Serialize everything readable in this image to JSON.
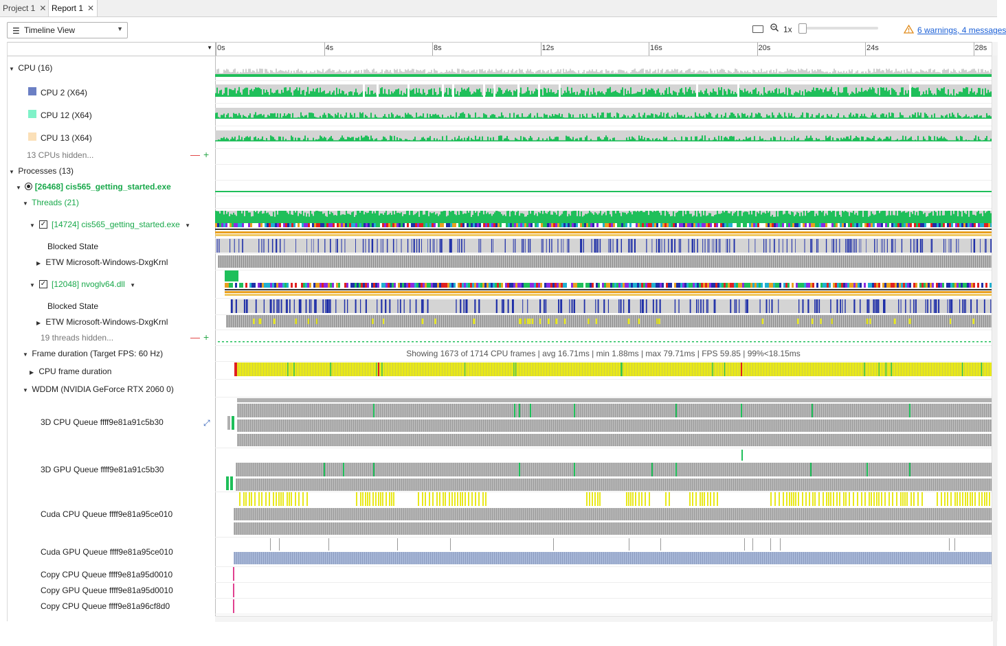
{
  "tabs": [
    {
      "label": "Project 1",
      "close": "✕"
    },
    {
      "label": "Report 1",
      "close": "✕"
    }
  ],
  "toolbar": {
    "view_label": "Timeline View",
    "zoom_label": "1x",
    "warnings_link": "6 warnings, 4 messages"
  },
  "ruler": {
    "ticks": [
      "0s",
      "4s",
      "8s",
      "12s",
      "16s",
      "20s",
      "24s",
      "28s"
    ]
  },
  "tree": {
    "cpu_group": "CPU (16)",
    "cpus": [
      {
        "label": "CPU 2 (X64)",
        "color": "#6b7fc4"
      },
      {
        "label": "CPU 12 (X64)",
        "color": "#7ff2c8"
      },
      {
        "label": "CPU 13 (X64)",
        "color": "#fbe0b8"
      }
    ],
    "cpus_hidden": "13 CPUs hidden...",
    "processes_group": "Processes (13)",
    "process_name": "[26468] cis565_getting_started.exe",
    "threads_group": "Threads (21)",
    "thread1_name": "[14724] cis565_getting_started.exe",
    "thread1_blocked": "Blocked State",
    "thread1_etw": "ETW Microsoft-Windows-DxgKrnl",
    "thread2_name": "[12048] nvoglv64.dll",
    "thread2_blocked": "Blocked State",
    "thread2_etw": "ETW Microsoft-Windows-DxgKrnl",
    "threads_hidden": "19 threads hidden...",
    "frame_duration": "Frame duration (Target FPS: 60 Hz)",
    "cpu_frame_duration": "CPU frame duration",
    "wddm": "WDDM (NVIDIA GeForce RTX 2060 0)",
    "queues": [
      "3D CPU Queue ffff9e81a91c5b30",
      "3D GPU Queue ffff9e81a91c5b30",
      "Cuda CPU Queue ffff9e81a95ce010",
      "Cuda GPU Queue ffff9e81a95ce010",
      "Copy CPU Queue ffff9e81a95d0010",
      "Copy GPU Queue ffff9e81a95d0010",
      "Copy CPU Queue ffff9e81a96cf8d0"
    ]
  },
  "frame_summary": "Showing 1673 of 1714 CPU frames | avg 16.71ms | min 1.88ms | max 79.71ms | FPS 59.85 | 99%<18.15ms",
  "colors": {
    "activity_green": "#1fbf5a",
    "idle_gray": "#d4d4d4",
    "blocked_blue": "#1f2fa8",
    "frame_yellow": "#e8e81a",
    "frame_red": "#e02020",
    "queue_gray": "#a8a8a8",
    "cuda_blue": "#a8b8d8"
  }
}
